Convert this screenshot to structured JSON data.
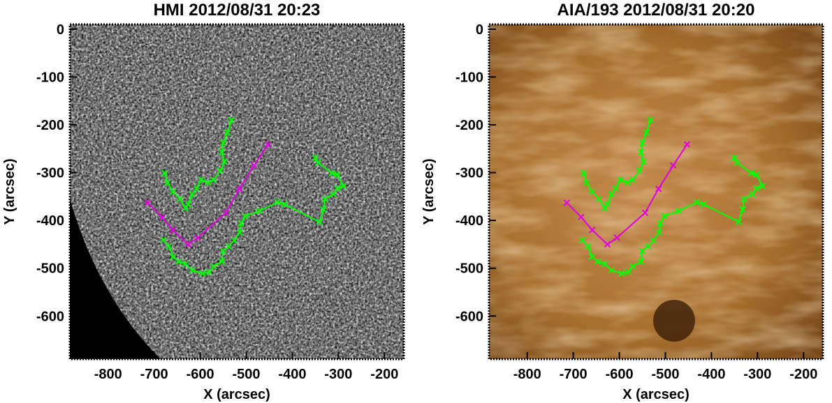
{
  "chart_data": [
    {
      "type": "line",
      "title": "HMI 2012/08/31 20:23",
      "x_label": "X (arcsec)",
      "y_label": "Y (arcsec)",
      "xlim": [
        -883,
        -158
      ],
      "ylim": [
        -690,
        10
      ],
      "xticks": [
        -800,
        -700,
        -600,
        -500,
        -400,
        -300,
        -200
      ],
      "yticks": [
        0,
        -100,
        -200,
        -300,
        -400,
        -500,
        -600
      ],
      "series": [
        {
          "color": "#e000e0",
          "x": [
            -714,
            -683,
            -659,
            -626,
            -605,
            -544,
            -515,
            -483,
            -453
          ],
          "values": [
            -363,
            -393,
            -420,
            -450,
            -436,
            -384,
            -334,
            -285,
            -241
          ]
        },
        {
          "color": "#00ff00",
          "x": [
            -532,
            -541,
            -550,
            -553,
            -547,
            -556,
            -571,
            -583,
            -598,
            -608,
            -617,
            -626,
            -632,
            -644,
            -659,
            -671,
            -677
          ],
          "values": [
            -190,
            -216,
            -238,
            -257,
            -277,
            -296,
            -315,
            -321,
            -315,
            -333,
            -345,
            -366,
            -374,
            -355,
            -340,
            -321,
            -301
          ]
        },
        {
          "color": "#00ff00",
          "x": [
            -680,
            -668,
            -659,
            -647,
            -632,
            -617,
            -595,
            -580,
            -571,
            -553,
            -550,
            -538,
            -526,
            -514,
            -511,
            -502,
            -471,
            -432,
            -417,
            -341,
            -332,
            -329,
            -311,
            -302,
            -289,
            -302,
            -314,
            -344,
            -350
          ],
          "values": [
            -441,
            -454,
            -476,
            -486,
            -491,
            -504,
            -511,
            -508,
            -496,
            -486,
            -464,
            -454,
            -442,
            -425,
            -406,
            -391,
            -380,
            -362,
            -366,
            -403,
            -377,
            -355,
            -345,
            -333,
            -328,
            -304,
            -301,
            -279,
            -269
          ]
        }
      ]
    },
    {
      "type": "line",
      "title": "AIA/193 2012/08/31 20:20",
      "x_label": "X (arcsec)",
      "y_label": "Y (arcsec)",
      "xlim": [
        -883,
        -158
      ],
      "ylim": [
        -690,
        10
      ],
      "xticks": [
        -800,
        -700,
        -600,
        -500,
        -400,
        -300,
        -200
      ],
      "yticks": [
        0,
        -100,
        -200,
        -300,
        -400,
        -500,
        -600
      ],
      "series": [
        {
          "color": "#e000e0",
          "x": [
            -714,
            -683,
            -659,
            -626,
            -605,
            -544,
            -515,
            -483,
            -453
          ],
          "values": [
            -363,
            -393,
            -420,
            -450,
            -436,
            -384,
            -334,
            -285,
            -241
          ]
        },
        {
          "color": "#00ff00",
          "x": [
            -532,
            -541,
            -550,
            -553,
            -547,
            -556,
            -571,
            -583,
            -598,
            -608,
            -617,
            -626,
            -632,
            -644,
            -659,
            -671,
            -677
          ],
          "values": [
            -190,
            -216,
            -238,
            -257,
            -277,
            -296,
            -315,
            -321,
            -315,
            -333,
            -345,
            -366,
            -374,
            -355,
            -340,
            -321,
            -301
          ]
        },
        {
          "color": "#00ff00",
          "x": [
            -680,
            -668,
            -659,
            -647,
            -632,
            -617,
            -595,
            -580,
            -571,
            -553,
            -550,
            -538,
            -526,
            -514,
            -511,
            -502,
            -471,
            -432,
            -417,
            -341,
            -332,
            -329,
            -311,
            -302,
            -289,
            -302,
            -314,
            -344,
            -350
          ],
          "values": [
            -441,
            -454,
            -476,
            -486,
            -491,
            -504,
            -511,
            -508,
            -496,
            -486,
            -464,
            -454,
            -442,
            -425,
            -406,
            -391,
            -380,
            -362,
            -366,
            -403,
            -377,
            -355,
            -345,
            -333,
            -328,
            -304,
            -301,
            -279,
            -269
          ]
        }
      ]
    }
  ]
}
